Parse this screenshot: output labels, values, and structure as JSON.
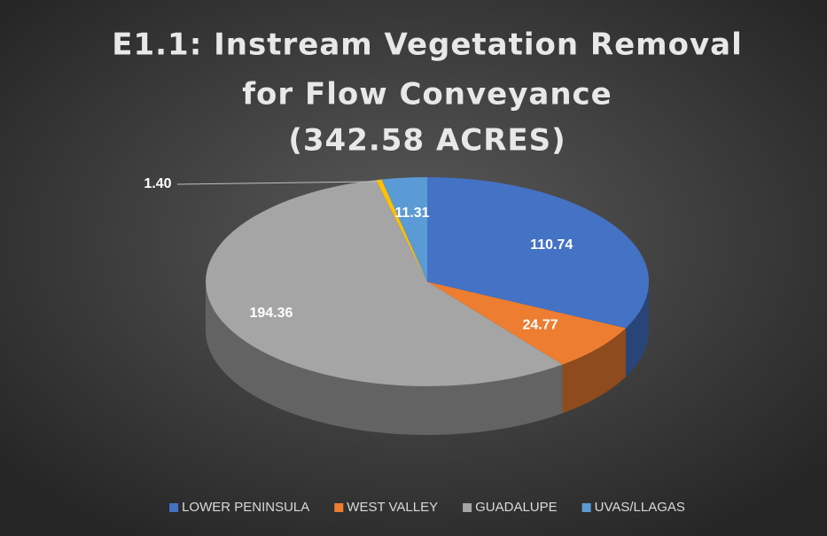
{
  "chart_data": {
    "type": "pie3d",
    "title": [
      "E1.1: Instream Vegetation Removal",
      "for Flow Conveyance",
      "(342.58 ACRES)"
    ],
    "categories": [
      "LOWER PENINSULA",
      "WEST VALLEY",
      "GUADALUPE",
      null,
      "UVAS/LLAGAS"
    ],
    "values": [
      110.74,
      24.77,
      194.36,
      1.4,
      11.31
    ],
    "value_labels": [
      "110.74",
      "24.77",
      "194.36",
      "1.40",
      "11.31"
    ],
    "colors": [
      "#4472c4",
      "#ed7d31",
      "#a5a5a5",
      "#ffc000",
      "#5b9bd5"
    ],
    "legend": "bottom"
  }
}
